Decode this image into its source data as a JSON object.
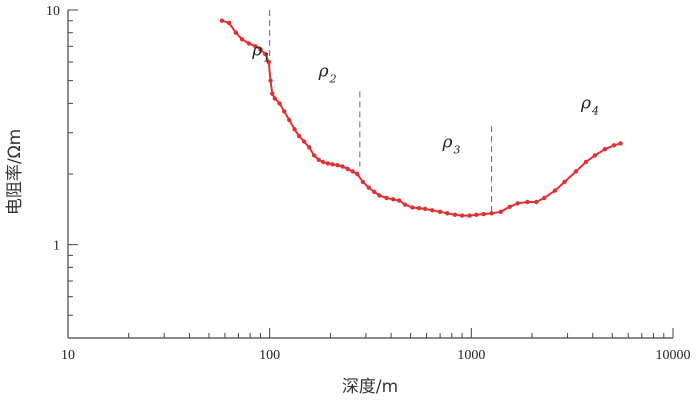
{
  "chart_data": {
    "type": "line",
    "xlabel": "深度/m",
    "ylabel": "电阻率/Ωm",
    "x_scale": "log",
    "y_scale": "log",
    "xlim": [
      10,
      10000
    ],
    "ylim": [
      0.4,
      10
    ],
    "x_ticks": [
      "10",
      "100",
      "1000",
      "10000"
    ],
    "y_ticks": [
      "10",
      "1"
    ],
    "grid": false,
    "series_color": "#e03030",
    "series": [
      {
        "x": [
          58,
          63,
          68,
          73,
          79,
          85,
          90,
          95,
          99,
          101,
          103,
          106,
          112,
          118,
          125,
          133,
          140,
          148,
          157,
          166,
          175,
          184,
          194,
          205,
          217,
          230,
          244,
          258,
          272,
          290,
          310,
          330,
          350,
          380,
          410,
          440,
          470,
          510,
          550,
          590,
          640,
          700,
          760,
          830,
          900,
          980,
          1060,
          1150,
          1260,
          1400,
          1550,
          1700,
          1900,
          2100,
          2300,
          2600,
          2900,
          3300,
          3700,
          4100,
          4600,
          5100,
          5500
        ],
        "y": [
          9.0,
          8.8,
          8.0,
          7.5,
          7.2,
          7.0,
          6.8,
          6.5,
          6.0,
          5.0,
          4.4,
          4.2,
          4.0,
          3.7,
          3.4,
          3.1,
          2.9,
          2.75,
          2.6,
          2.4,
          2.3,
          2.25,
          2.22,
          2.2,
          2.18,
          2.15,
          2.1,
          2.05,
          2.0,
          1.85,
          1.75,
          1.68,
          1.62,
          1.58,
          1.56,
          1.54,
          1.48,
          1.44,
          1.43,
          1.42,
          1.4,
          1.38,
          1.36,
          1.34,
          1.33,
          1.33,
          1.34,
          1.35,
          1.36,
          1.38,
          1.45,
          1.5,
          1.52,
          1.52,
          1.58,
          1.7,
          1.85,
          2.05,
          2.25,
          2.4,
          2.55,
          2.65,
          2.7
        ]
      }
    ],
    "annotations": [
      {
        "symbol": "ρ",
        "subscript": "1",
        "x": 82,
        "y": 6.4
      },
      {
        "symbol": "ρ",
        "subscript": "2",
        "x": 175,
        "y": 5.2
      },
      {
        "symbol": "ρ",
        "subscript": "3",
        "x": 720,
        "y": 2.6
      },
      {
        "symbol": "ρ",
        "subscript": "4",
        "x": 3500,
        "y": 3.8
      }
    ],
    "dividers": [
      {
        "x": 100,
        "y_top": 10,
        "y_bottom": 5.8
      },
      {
        "x": 280,
        "y_top": 4.5,
        "y_bottom": 2.15
      },
      {
        "x": 1260,
        "y_top": 3.2,
        "y_bottom": 1.36
      }
    ]
  }
}
